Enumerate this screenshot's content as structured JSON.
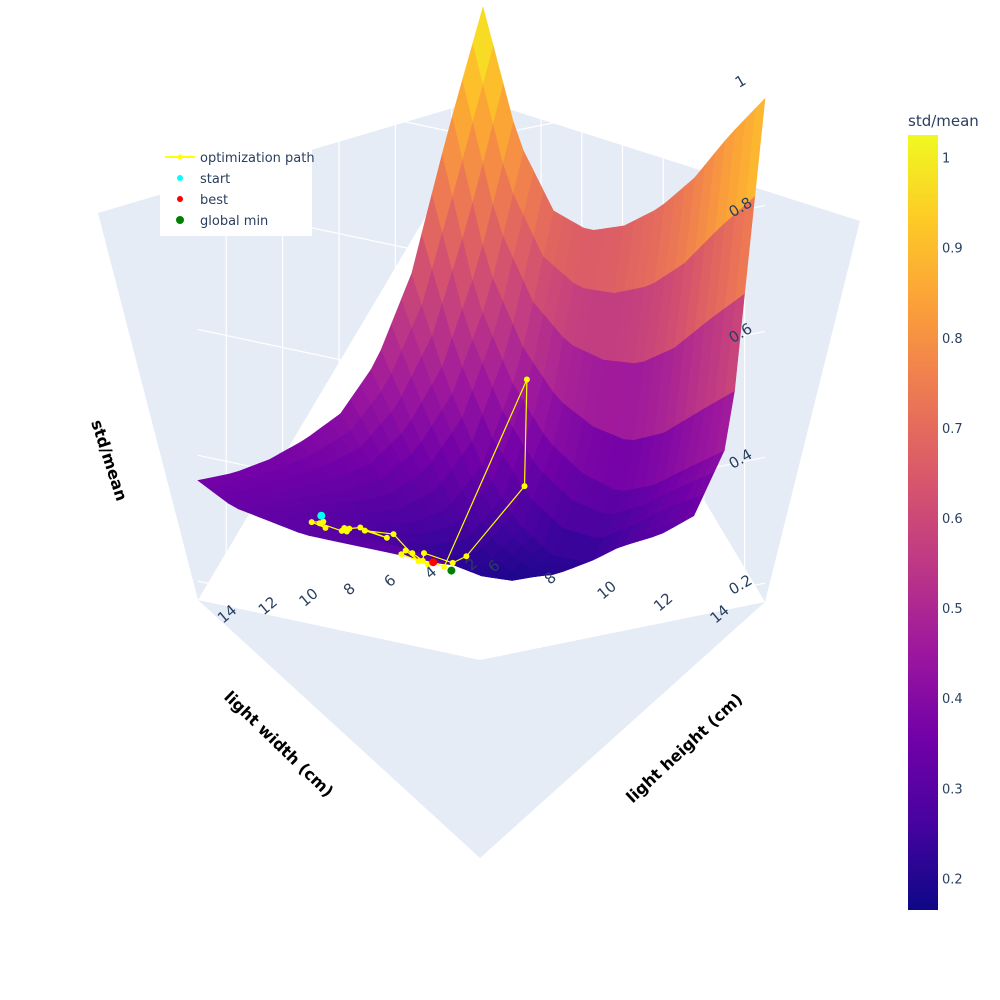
{
  "chart_data": {
    "type": "surface",
    "x_axis": {
      "label": "light height (cm)",
      "ticks": [
        2,
        4,
        6,
        8,
        10,
        12,
        14
      ],
      "range": [
        1,
        15
      ]
    },
    "y_axis": {
      "label": "light width (cm)",
      "ticks": [
        6,
        8,
        10,
        12,
        14
      ],
      "range": [
        5,
        15
      ]
    },
    "z_axis": {
      "label": "std/mean",
      "ticks": [
        0.2,
        0.4,
        0.6,
        0.8,
        1
      ],
      "tick_labels": [
        "0.2",
        "0.4",
        "0.6",
        "0.8",
        "1"
      ],
      "range": [
        0.17,
        1.06
      ]
    },
    "colorbar": {
      "title": "std/mean",
      "ticks": [
        0.2,
        0.3,
        0.4,
        0.5,
        0.6,
        0.7,
        0.8,
        0.9,
        1
      ],
      "tick_labels": [
        "0.2",
        "0.3",
        "0.4",
        "0.5",
        "0.6",
        "0.7",
        "0.8",
        "0.9",
        "1"
      ],
      "range": [
        0.165,
        1.025
      ],
      "colorscale": "plasma"
    },
    "surface_grid": {
      "x": [
        1,
        2.75,
        4.5,
        6.25,
        8,
        9.75,
        11.5,
        13.25,
        15
      ],
      "y": [
        5,
        6.25,
        7.5,
        8.75,
        10,
        11.25,
        12.5,
        13.75,
        15
      ],
      "z": [
        [
          1.02,
          0.83,
          0.62,
          0.49,
          0.42,
          0.39,
          0.37,
          0.36,
          0.36
        ],
        [
          0.82,
          0.6,
          0.46,
          0.38,
          0.34,
          0.33,
          0.33,
          0.33,
          0.33
        ],
        [
          0.72,
          0.48,
          0.34,
          0.28,
          0.27,
          0.28,
          0.3,
          0.31,
          0.32
        ],
        [
          0.7,
          0.4,
          0.26,
          0.21,
          0.22,
          0.25,
          0.28,
          0.3,
          0.31
        ],
        [
          0.72,
          0.36,
          0.22,
          0.19,
          0.21,
          0.25,
          0.28,
          0.3,
          0.31
        ],
        [
          0.76,
          0.34,
          0.22,
          0.21,
          0.24,
          0.27,
          0.29,
          0.3,
          0.31
        ],
        [
          0.82,
          0.36,
          0.26,
          0.25,
          0.27,
          0.28,
          0.29,
          0.3,
          0.31
        ],
        [
          0.9,
          0.4,
          0.3,
          0.28,
          0.29,
          0.3,
          0.3,
          0.31,
          0.31
        ],
        [
          0.97,
          0.44,
          0.33,
          0.31,
          0.31,
          0.31,
          0.32,
          0.32,
          0.32
        ]
      ]
    },
    "series": [
      {
        "name": "optimization path",
        "mode": "lines+markers",
        "color": "#ffff00",
        "points": [
          [
            13.0,
            8.0,
            0.31
          ],
          [
            12.6,
            7.3,
            0.3
          ],
          [
            12.2,
            7.5,
            0.29
          ],
          [
            11.8,
            7.0,
            0.29
          ],
          [
            11.4,
            7.5,
            0.28
          ],
          [
            11.0,
            7.3,
            0.28
          ],
          [
            10.6,
            7.1,
            0.27
          ],
          [
            10.2,
            6.9,
            0.27
          ],
          [
            9.8,
            7.0,
            0.27
          ],
          [
            9.6,
            7.8,
            0.26
          ],
          [
            9.3,
            6.8,
            0.26
          ],
          [
            9.0,
            7.6,
            0.26
          ],
          [
            8.6,
            8.2,
            0.22
          ],
          [
            8.4,
            7.6,
            0.23
          ],
          [
            8.2,
            7.3,
            0.22
          ],
          [
            8.0,
            8.1,
            0.21
          ],
          [
            7.8,
            7.4,
            0.22
          ],
          [
            7.7,
            7.7,
            0.21
          ],
          [
            7.5,
            7.6,
            0.22
          ],
          [
            7.2,
            8.4,
            0.21
          ],
          [
            6.8,
            8.6,
            0.22
          ],
          [
            4.5,
            9.0,
            0.32
          ],
          [
            3.0,
            8.0,
            0.47
          ],
          [
            7.9,
            8.6,
            0.21
          ],
          [
            7.6,
            8.0,
            0.21
          ]
        ]
      },
      {
        "name": "start",
        "mode": "markers",
        "color": "#00ffff",
        "points": [
          [
            13.1,
            8.0,
            0.32
          ]
        ]
      },
      {
        "name": "best",
        "mode": "markers",
        "color": "#ff0000",
        "points": [
          [
            7.6,
            8.0,
            0.21
          ]
        ]
      },
      {
        "name": "global min",
        "mode": "markers",
        "color": "#008000",
        "points": [
          [
            7.4,
            8.5,
            0.2
          ]
        ]
      }
    ],
    "legend": {
      "position": "top-left",
      "entries": [
        {
          "label": "optimization path",
          "color": "#ffff00",
          "symbol": "line-marker"
        },
        {
          "label": "start",
          "color": "#00ffff",
          "symbol": "marker"
        },
        {
          "label": "best",
          "color": "#ff0000",
          "symbol": "marker"
        },
        {
          "label": "global min",
          "color": "#008000",
          "symbol": "marker"
        }
      ]
    },
    "scene": {
      "background": "#e5ecf6",
      "grid_color": "#ffffff",
      "grid": true
    }
  }
}
